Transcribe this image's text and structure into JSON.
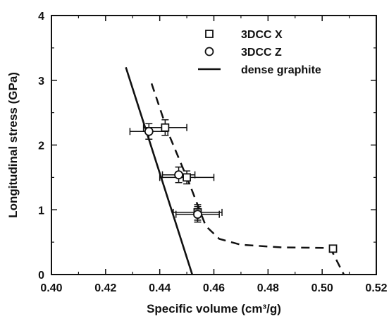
{
  "chart_data": {
    "type": "scatter",
    "xlabel": "Specific volume (cm³/g)",
    "ylabel": "Longitudinal stress (GPa)",
    "xlim": [
      0.4,
      0.52
    ],
    "ylim": [
      0,
      4
    ],
    "x_ticks": [
      "0.40",
      "0.42",
      "0.44",
      "0.46",
      "0.48",
      "0.50",
      "0.52"
    ],
    "y_ticks": [
      "0",
      "1",
      "2",
      "3",
      "4"
    ],
    "grid": false,
    "legend_position": "top-right",
    "series": [
      {
        "name": "3DCC X",
        "marker": "square",
        "points": [
          {
            "x": 0.442,
            "y": 2.27,
            "xerr": 0.008,
            "yerr": 0.12
          },
          {
            "x": 0.45,
            "y": 1.5,
            "xerr": 0.01,
            "yerr": 0.1
          },
          {
            "x": 0.454,
            "y": 0.96,
            "xerr": 0.009,
            "yerr": 0.12
          },
          {
            "x": 0.504,
            "y": 0.4,
            "xerr": 0.0,
            "yerr": 0.0
          }
        ]
      },
      {
        "name": "3DCC Z",
        "marker": "circle",
        "points": [
          {
            "x": 0.436,
            "y": 2.21,
            "xerr": 0.007,
            "yerr": 0.12
          },
          {
            "x": 0.447,
            "y": 1.54,
            "xerr": 0.006,
            "yerr": 0.12
          },
          {
            "x": 0.454,
            "y": 0.93,
            "xerr": 0.008,
            "yerr": 0.12
          }
        ]
      },
      {
        "name": "dense graphite",
        "type": "line",
        "style": "solid",
        "points": [
          {
            "x": 0.4275,
            "y": 3.2
          },
          {
            "x": 0.452,
            "y": 0.0
          }
        ]
      },
      {
        "type": "line",
        "style": "dashed",
        "points": [
          {
            "x": 0.437,
            "y": 2.95
          },
          {
            "x": 0.443,
            "y": 2.2
          },
          {
            "x": 0.451,
            "y": 1.4
          },
          {
            "x": 0.457,
            "y": 0.75
          },
          {
            "x": 0.462,
            "y": 0.55
          },
          {
            "x": 0.47,
            "y": 0.46
          },
          {
            "x": 0.485,
            "y": 0.42
          },
          {
            "x": 0.503,
            "y": 0.41
          },
          {
            "x": 0.508,
            "y": 0.0
          }
        ]
      }
    ],
    "colors": {
      "axis": "#111111",
      "line": "#111111",
      "marker_fill": "#ffffff"
    }
  }
}
